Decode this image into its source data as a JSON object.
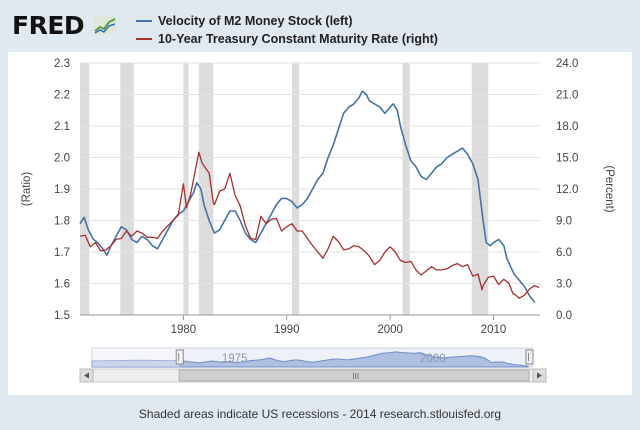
{
  "brand": {
    "name": "FRED"
  },
  "footer": {
    "note": "Shaded areas indicate US recessions - 2014 research.stlouisfed.org"
  },
  "colors": {
    "series_left": "#4572a7",
    "series_right": "#aa2e2e",
    "recession": "#dcdcdc",
    "navigator_fill": "#aebfe0"
  },
  "navigator": {
    "labels": [
      "1975",
      "2000"
    ],
    "scroll_grip": "III"
  },
  "chart_data": {
    "type": "line",
    "grid": true,
    "legend": "top-left",
    "xlim": [
      1970,
      2014.5
    ],
    "x_ticks": [
      1980,
      1990,
      2000,
      2010
    ],
    "y_left": {
      "label": "(Ratio)",
      "lim": [
        1.5,
        2.3
      ],
      "ticks": [
        "1.5",
        "1.6",
        "1.7",
        "1.8",
        "1.9",
        "2.0",
        "2.1",
        "2.2",
        "2.3"
      ]
    },
    "y_right": {
      "label": "(Percent)",
      "lim": [
        0,
        24
      ],
      "ticks": [
        "0.0",
        "3.0",
        "6.0",
        "9.0",
        "12.0",
        "15.0",
        "18.0",
        "21.0",
        "24.0"
      ]
    },
    "recessions": [
      [
        1970.0,
        1970.9
      ],
      [
        1973.9,
        1975.2
      ],
      [
        1980.0,
        1980.5
      ],
      [
        1981.5,
        1982.9
      ],
      [
        1990.5,
        1991.2
      ],
      [
        2001.2,
        2001.9
      ],
      [
        2007.9,
        2009.5
      ]
    ],
    "series": [
      {
        "name": "Velocity of M2 Money Stock (left)",
        "axis": "left",
        "points": [
          [
            1970,
            1.79
          ],
          [
            1970.4,
            1.81
          ],
          [
            1970.8,
            1.77
          ],
          [
            1971.3,
            1.74
          ],
          [
            1971.7,
            1.73
          ],
          [
            1972.2,
            1.71
          ],
          [
            1972.6,
            1.69
          ],
          [
            1973,
            1.72
          ],
          [
            1973.5,
            1.75
          ],
          [
            1974,
            1.78
          ],
          [
            1974.5,
            1.77
          ],
          [
            1975,
            1.74
          ],
          [
            1975.5,
            1.73
          ],
          [
            1976,
            1.75
          ],
          [
            1976.5,
            1.74
          ],
          [
            1977,
            1.72
          ],
          [
            1977.5,
            1.71
          ],
          [
            1978,
            1.74
          ],
          [
            1978.5,
            1.77
          ],
          [
            1979,
            1.8
          ],
          [
            1979.5,
            1.82
          ],
          [
            1980,
            1.83
          ],
          [
            1980.5,
            1.86
          ],
          [
            1981,
            1.89
          ],
          [
            1981.3,
            1.92
          ],
          [
            1981.7,
            1.9
          ],
          [
            1982,
            1.85
          ],
          [
            1982.5,
            1.8
          ],
          [
            1983,
            1.76
          ],
          [
            1983.5,
            1.77
          ],
          [
            1984,
            1.8
          ],
          [
            1984.5,
            1.83
          ],
          [
            1985,
            1.83
          ],
          [
            1985.5,
            1.8
          ],
          [
            1986,
            1.76
          ],
          [
            1986.5,
            1.74
          ],
          [
            1987,
            1.73
          ],
          [
            1987.5,
            1.76
          ],
          [
            1988,
            1.79
          ],
          [
            1988.5,
            1.82
          ],
          [
            1989,
            1.85
          ],
          [
            1989.5,
            1.87
          ],
          [
            1990,
            1.87
          ],
          [
            1990.5,
            1.86
          ],
          [
            1991,
            1.84
          ],
          [
            1991.5,
            1.85
          ],
          [
            1992,
            1.87
          ],
          [
            1992.5,
            1.9
          ],
          [
            1993,
            1.93
          ],
          [
            1993.5,
            1.95
          ],
          [
            1994,
            2.0
          ],
          [
            1994.5,
            2.04
          ],
          [
            1995,
            2.09
          ],
          [
            1995.5,
            2.14
          ],
          [
            1996,
            2.16
          ],
          [
            1996.5,
            2.17
          ],
          [
            1997,
            2.19
          ],
          [
            1997.3,
            2.21
          ],
          [
            1997.7,
            2.2
          ],
          [
            1998,
            2.18
          ],
          [
            1998.5,
            2.17
          ],
          [
            1999,
            2.16
          ],
          [
            1999.5,
            2.14
          ],
          [
            2000,
            2.16
          ],
          [
            2000.3,
            2.17
          ],
          [
            2000.7,
            2.15
          ],
          [
            2001,
            2.1
          ],
          [
            2001.5,
            2.04
          ],
          [
            2002,
            1.99
          ],
          [
            2002.5,
            1.97
          ],
          [
            2003,
            1.94
          ],
          [
            2003.5,
            1.93
          ],
          [
            2004,
            1.95
          ],
          [
            2004.5,
            1.97
          ],
          [
            2005,
            1.98
          ],
          [
            2005.5,
            2.0
          ],
          [
            2006,
            2.01
          ],
          [
            2006.5,
            2.02
          ],
          [
            2007,
            2.03
          ],
          [
            2007.5,
            2.01
          ],
          [
            2008,
            1.98
          ],
          [
            2008.5,
            1.93
          ],
          [
            2009,
            1.8
          ],
          [
            2009.3,
            1.73
          ],
          [
            2009.7,
            1.72
          ],
          [
            2010,
            1.73
          ],
          [
            2010.5,
            1.74
          ],
          [
            2011,
            1.72
          ],
          [
            2011.3,
            1.68
          ],
          [
            2011.7,
            1.65
          ],
          [
            2012,
            1.63
          ],
          [
            2012.5,
            1.61
          ],
          [
            2013,
            1.59
          ],
          [
            2013.5,
            1.56
          ],
          [
            2014,
            1.54
          ]
        ]
      },
      {
        "name": "10-Year Treasury Constant Maturity Rate (right)",
        "axis": "right",
        "points": [
          [
            1970,
            7.5
          ],
          [
            1970.5,
            7.6
          ],
          [
            1971,
            6.5
          ],
          [
            1971.5,
            6.9
          ],
          [
            1972,
            6.1
          ],
          [
            1972.5,
            6.2
          ],
          [
            1973,
            6.6
          ],
          [
            1973.5,
            7.2
          ],
          [
            1974,
            7.3
          ],
          [
            1974.5,
            8.0
          ],
          [
            1975,
            7.5
          ],
          [
            1975.5,
            8.0
          ],
          [
            1976,
            7.8
          ],
          [
            1976.5,
            7.4
          ],
          [
            1977,
            7.4
          ],
          [
            1977.5,
            7.3
          ],
          [
            1978,
            8.0
          ],
          [
            1978.5,
            8.5
          ],
          [
            1979,
            9.0
          ],
          [
            1979.5,
            9.5
          ],
          [
            1980,
            12.5
          ],
          [
            1980.3,
            10.2
          ],
          [
            1980.7,
            11.5
          ],
          [
            1981,
            13.0
          ],
          [
            1981.5,
            15.5
          ],
          [
            1981.8,
            14.5
          ],
          [
            1982,
            14.2
          ],
          [
            1982.5,
            13.5
          ],
          [
            1982.9,
            10.7
          ],
          [
            1983,
            10.5
          ],
          [
            1983.5,
            11.8
          ],
          [
            1984,
            12.0
          ],
          [
            1984.5,
            13.5
          ],
          [
            1985,
            11.4
          ],
          [
            1985.5,
            10.4
          ],
          [
            1986,
            8.5
          ],
          [
            1986.5,
            7.3
          ],
          [
            1987,
            7.2
          ],
          [
            1987.5,
            9.4
          ],
          [
            1988,
            8.7
          ],
          [
            1988.5,
            9.1
          ],
          [
            1989,
            9.2
          ],
          [
            1989.5,
            8.0
          ],
          [
            1990,
            8.4
          ],
          [
            1990.5,
            8.7
          ],
          [
            1991,
            8.0
          ],
          [
            1991.5,
            8.0
          ],
          [
            1992,
            7.3
          ],
          [
            1992.5,
            6.6
          ],
          [
            1993,
            6.0
          ],
          [
            1993.5,
            5.4
          ],
          [
            1994,
            6.3
          ],
          [
            1994.5,
            7.5
          ],
          [
            1995,
            7.0
          ],
          [
            1995.5,
            6.2
          ],
          [
            1996,
            6.3
          ],
          [
            1996.5,
            6.6
          ],
          [
            1997,
            6.5
          ],
          [
            1997.5,
            6.1
          ],
          [
            1998,
            5.6
          ],
          [
            1998.5,
            4.8
          ],
          [
            1999,
            5.2
          ],
          [
            1999.5,
            6.0
          ],
          [
            2000,
            6.5
          ],
          [
            2000.5,
            6.0
          ],
          [
            2001,
            5.2
          ],
          [
            2001.5,
            5.0
          ],
          [
            2002,
            5.1
          ],
          [
            2002.5,
            4.3
          ],
          [
            2003,
            3.8
          ],
          [
            2003.5,
            4.2
          ],
          [
            2004,
            4.6
          ],
          [
            2004.5,
            4.3
          ],
          [
            2005,
            4.3
          ],
          [
            2005.5,
            4.4
          ],
          [
            2006,
            4.7
          ],
          [
            2006.5,
            4.9
          ],
          [
            2007,
            4.6
          ],
          [
            2007.5,
            4.8
          ],
          [
            2008,
            3.7
          ],
          [
            2008.5,
            3.9
          ],
          [
            2008.9,
            2.4
          ],
          [
            2009,
            2.8
          ],
          [
            2009.5,
            3.6
          ],
          [
            2010,
            3.7
          ],
          [
            2010.5,
            2.9
          ],
          [
            2011,
            3.4
          ],
          [
            2011.5,
            3.0
          ],
          [
            2011.9,
            2.0
          ],
          [
            2012,
            2.0
          ],
          [
            2012.5,
            1.6
          ],
          [
            2013,
            1.9
          ],
          [
            2013.5,
            2.5
          ],
          [
            2014,
            2.8
          ],
          [
            2014.4,
            2.6
          ]
        ]
      }
    ]
  }
}
